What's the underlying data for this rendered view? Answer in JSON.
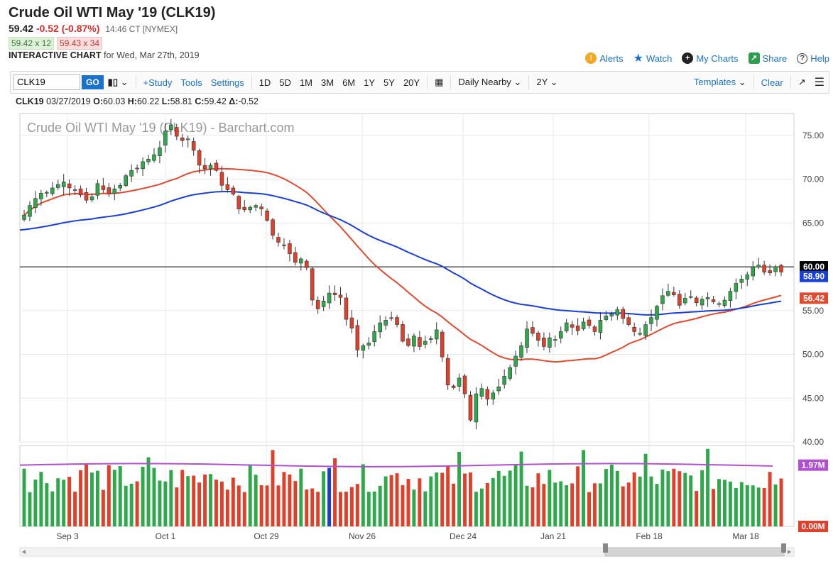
{
  "header": {
    "title": "Crude Oil WTI May '19 (CLK19)",
    "last": "59.42",
    "change": "-0.52 (-0.87%)",
    "time": "14:46 CT [NYMEX]",
    "bid": "59.42 x 12",
    "ask": "59.43 x 34",
    "interactive_label": "INTERACTIVE CHART",
    "interactive_date": "for Wed, Mar 27th, 2019"
  },
  "links": {
    "alerts": "Alerts",
    "watch": "Watch",
    "my_charts": "My Charts",
    "share": "Share",
    "help": "Help"
  },
  "toolbar": {
    "symbol": "CLK19",
    "go": "GO",
    "study": "+Study",
    "tools": "Tools",
    "settings": "Settings",
    "periods": [
      "1D",
      "5D",
      "1M",
      "3M",
      "6M",
      "1Y",
      "5Y",
      "20Y"
    ],
    "nearby": "Daily Nearby",
    "range": "2Y",
    "templates": "Templates",
    "clear": "Clear"
  },
  "ohlc": {
    "symbol": "CLK19",
    "date": "03/27/2019",
    "open_label": "O:",
    "open": "60.03",
    "high_label": "H:",
    "high": "60.22",
    "low_label": "L:",
    "low": "58.81",
    "close_label": "C:",
    "close": "59.42",
    "delta_label": "Δ:",
    "delta": "-0.52"
  },
  "chart_data": {
    "type": "candlestick",
    "title": "Crude Oil WTI May '19 (CLK19) - Barchart.com",
    "ylim": [
      40,
      77.5
    ],
    "yticks": [
      40,
      45,
      50,
      55,
      60,
      65,
      70,
      75
    ],
    "ytick_labels": [
      "40.00",
      "45.00",
      "50.00",
      "55.00",
      "60.00",
      "65.00",
      "70.00",
      "75.00"
    ],
    "xtick_labels": [
      "Sep 3",
      "Oct 1",
      "Oct 29",
      "Nov 26",
      "Dec 24",
      "Jan 21",
      "Feb 18",
      "Mar 18"
    ],
    "horizontal_line": 60.0,
    "price_tags": [
      {
        "value": 60.0,
        "label": "60.00",
        "color": "#000000"
      },
      {
        "value": 58.9,
        "label": "58.90",
        "color": "#1a3fd6"
      },
      {
        "value": 56.42,
        "label": "56.42",
        "color": "#e04a2e"
      }
    ],
    "closes": [
      65.9,
      67.0,
      67.8,
      68.4,
      68.5,
      69.0,
      69.4,
      69.7,
      69.0,
      68.8,
      68.2,
      67.6,
      68.0,
      69.5,
      68.8,
      68.3,
      68.9,
      69.3,
      70.4,
      71.0,
      71.2,
      72.0,
      72.3,
      72.8,
      73.6,
      75.5,
      76.2,
      74.9,
      74.4,
      74.6,
      73.3,
      71.6,
      71.2,
      71.6,
      71.0,
      69.3,
      68.8,
      68.3,
      66.6,
      66.5,
      66.8,
      67.0,
      66.6,
      65.3,
      63.6,
      62.8,
      62.5,
      61.5,
      60.5,
      60.9,
      59.9,
      56.2,
      55.2,
      56.1,
      57.0,
      56.8,
      56.5,
      54.0,
      53.0,
      50.5,
      51.0,
      51.3,
      52.6,
      53.6,
      53.9,
      54.1,
      53.4,
      51.5,
      51.0,
      52.1,
      50.9,
      51.5,
      51.8,
      52.8,
      49.7,
      46.5,
      46.2,
      47.3,
      45.5,
      42.5,
      45.5,
      46.1,
      44.9,
      45.6,
      46.3,
      47.5,
      48.5,
      49.8,
      51.0,
      52.9,
      52.4,
      51.6,
      50.9,
      51.9,
      51.7,
      52.6,
      53.6,
      53.1,
      52.7,
      53.7,
      53.3,
      52.6,
      53.9,
      54.4,
      54.6,
      55.1,
      54.1,
      53.4,
      52.6,
      52.4,
      53.4,
      54.2,
      55.5,
      56.7,
      57.2,
      56.8,
      55.6,
      56.4,
      56.6,
      55.9,
      56.3,
      56.5,
      56.0,
      55.8,
      56.2,
      57.2,
      58.1,
      58.6,
      59.1,
      60.0,
      60.2,
      59.4,
      59.3,
      60.0,
      59.4
    ],
    "ma50_label": "56.42",
    "ma200_label": "58.90",
    "volume_label": "1.97M",
    "volume_zero_label": "0.00M",
    "volume_max": 2.6
  }
}
